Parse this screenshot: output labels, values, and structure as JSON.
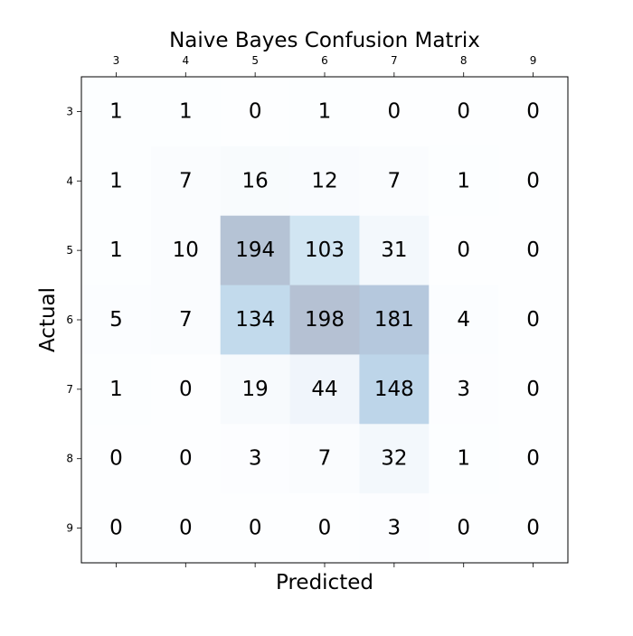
{
  "chart_data": {
    "type": "heatmap",
    "title": "Naive Bayes Confusion Matrix",
    "xlabel": "Predicted",
    "ylabel": "Actual",
    "x_categories": [
      "3",
      "4",
      "5",
      "6",
      "7",
      "8",
      "9"
    ],
    "y_categories": [
      "3",
      "4",
      "5",
      "6",
      "7",
      "8",
      "9"
    ],
    "x_tick_position": "top",
    "matrix": [
      [
        1,
        1,
        0,
        1,
        0,
        0,
        0
      ],
      [
        1,
        7,
        16,
        12,
        7,
        1,
        0
      ],
      [
        1,
        10,
        194,
        103,
        31,
        0,
        0
      ],
      [
        5,
        7,
        134,
        198,
        181,
        4,
        0
      ],
      [
        1,
        0,
        19,
        44,
        148,
        3,
        0
      ],
      [
        0,
        0,
        3,
        7,
        32,
        1,
        0
      ],
      [
        0,
        0,
        0,
        0,
        3,
        0,
        0
      ]
    ],
    "colormap": "Blues",
    "color_alpha": 0.3,
    "vmin": 0,
    "vmax": 198,
    "grid": false
  },
  "colors": {
    "cell_low": "#f7fbff",
    "cell_high": "#08306b",
    "text": "#000000",
    "frame": "#000000",
    "background": "#ffffff"
  }
}
